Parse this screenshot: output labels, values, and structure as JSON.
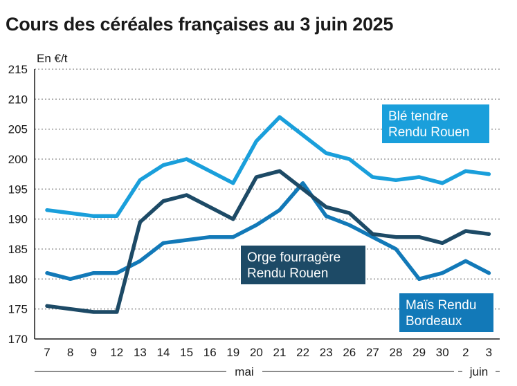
{
  "title": "Cours des céréales françaises au 3 juin 2025",
  "chart_data": {
    "type": "line",
    "title": "Cours des céréales françaises au 3 juin 2025",
    "ylabel": "En €/t",
    "xlabel": "",
    "ylim": [
      170,
      215
    ],
    "yticks": [
      170,
      175,
      180,
      185,
      190,
      195,
      200,
      205,
      210,
      215
    ],
    "categories": [
      "7",
      "8",
      "9",
      "12",
      "13",
      "14",
      "15",
      "16",
      "19",
      "20",
      "21",
      "22",
      "23",
      "26",
      "27",
      "28",
      "29",
      "30",
      "2",
      "3"
    ],
    "months": [
      {
        "label": "mai",
        "start": 0,
        "end": 17
      },
      {
        "label": "juin",
        "start": 18,
        "end": 19
      }
    ],
    "series": [
      {
        "name": "Blé tendre Rendu Rouen",
        "label_lines": [
          "Blé tendre",
          "Rendu Rouen"
        ],
        "color": "#1a9fdb",
        "values": [
          191.5,
          191,
          190.5,
          190.5,
          196.5,
          199,
          200,
          198,
          196,
          203,
          207,
          204,
          201,
          200,
          197,
          196.5,
          197,
          196,
          198,
          197.5
        ]
      },
      {
        "name": "Orge fourragère Rendu Rouen",
        "label_lines": [
          "Orge fourragère",
          "Rendu Rouen"
        ],
        "color": "#1d4a66",
        "values": [
          175.5,
          175,
          174.5,
          174.5,
          189.5,
          193,
          194,
          192,
          190,
          197,
          198,
          195,
          192,
          191,
          187.5,
          187,
          187,
          186,
          188,
          187.5
        ]
      },
      {
        "name": "Maïs Rendu Bordeaux",
        "label_lines": [
          "Maïs Rendu",
          "Bordeaux"
        ],
        "color": "#1279b8",
        "values": [
          181,
          180,
          181,
          181,
          183,
          186,
          186.5,
          187,
          187,
          189,
          191.5,
          196,
          190.5,
          189,
          187,
          185,
          180,
          181,
          183,
          181
        ]
      }
    ]
  }
}
